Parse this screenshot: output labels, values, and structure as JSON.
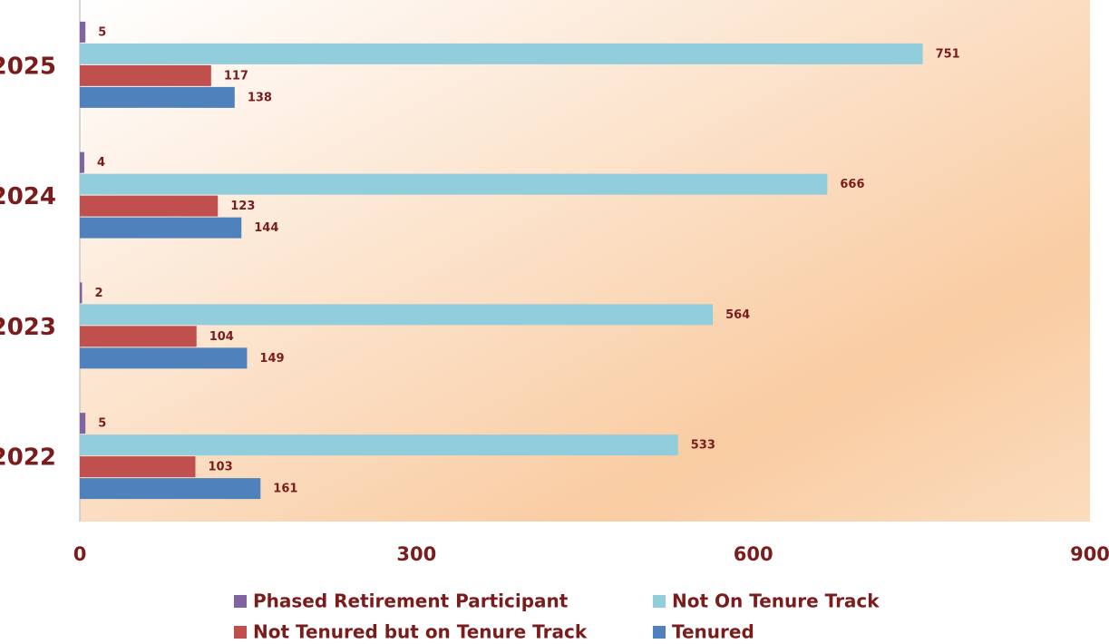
{
  "chart_data": {
    "type": "hbar",
    "categories": [
      "2022",
      "2023",
      "2024",
      "2025"
    ],
    "series": [
      {
        "name": "Phased Retirement Participant",
        "color": "#8064a2",
        "values": [
          5,
          2,
          4,
          5
        ]
      },
      {
        "name": "Not On Tenure Track",
        "color": "#92cddc",
        "values": [
          533,
          564,
          666,
          751
        ]
      },
      {
        "name": "Not Tenured but on Tenure Track",
        "color": "#c0504d",
        "values": [
          103,
          104,
          123,
          117
        ]
      },
      {
        "name": "Tenured",
        "color": "#4f81bd",
        "values": [
          161,
          149,
          144,
          138
        ]
      }
    ],
    "xlim": [
      0,
      900
    ],
    "xticks": [
      0,
      300,
      600,
      900
    ],
    "legend": "bottom"
  }
}
